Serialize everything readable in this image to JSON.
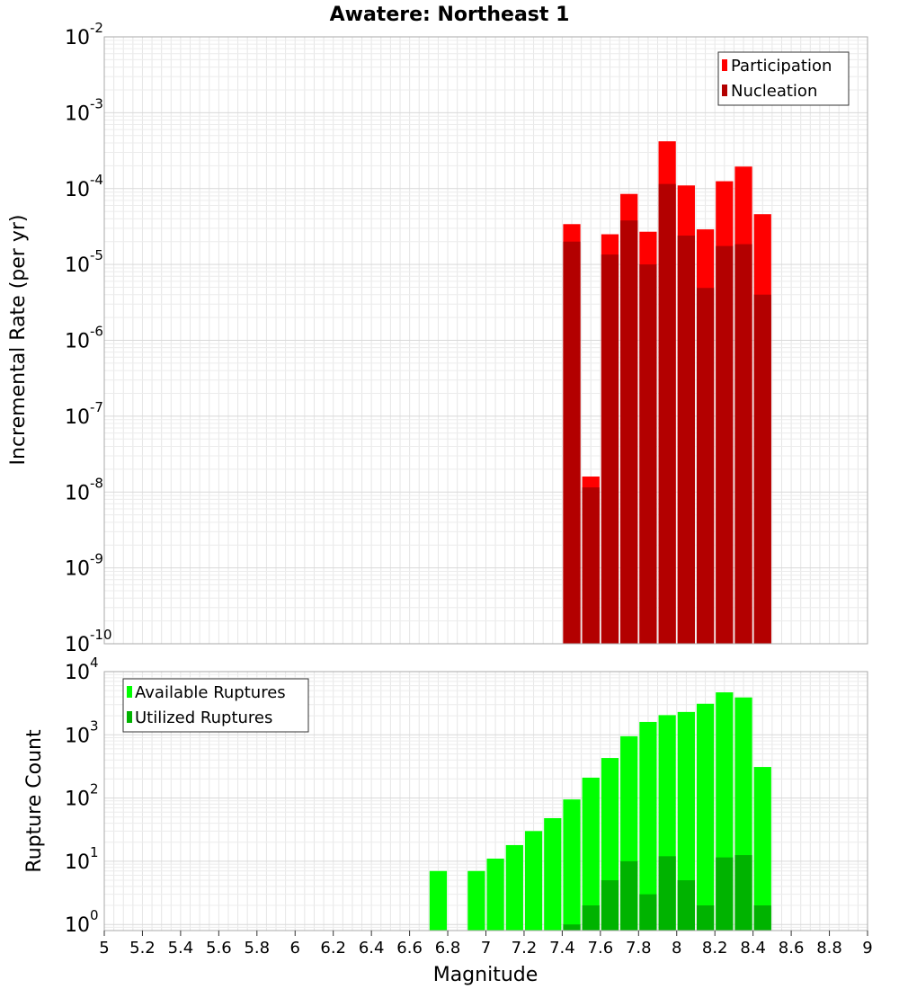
{
  "title": "Awatere: Northeast 1",
  "chart_data": [
    {
      "type": "bar",
      "ylabel": "Incremental Rate (per yr)",
      "xlabel": "",
      "yscale": "log",
      "ylim": [
        1e-10,
        0.01
      ],
      "xlim": [
        5,
        9
      ],
      "bin_width": 0.1,
      "grid": true,
      "legend_position": "top-right",
      "x": [
        7.45,
        7.55,
        7.65,
        7.75,
        7.85,
        7.95,
        8.05,
        8.15,
        8.25,
        8.35,
        8.45
      ],
      "series": [
        {
          "name": "Participation",
          "color": "#ff0000",
          "values": [
            3.4e-05,
            1.6e-08,
            2.5e-05,
            8.5e-05,
            2.7e-05,
            0.00042,
            0.00011,
            2.9e-05,
            0.000125,
            0.000195,
            4.6e-05
          ]
        },
        {
          "name": "Nucleation",
          "color": "#b30000",
          "values": [
            2e-05,
            1.15e-08,
            1.35e-05,
            3.8e-05,
            1e-05,
            0.000115,
            2.4e-05,
            4.9e-06,
            1.75e-05,
            1.85e-05,
            4e-06
          ]
        }
      ]
    },
    {
      "type": "bar",
      "ylabel": "Rupture Count",
      "xlabel": "Magnitude",
      "yscale": "log",
      "ylim": [
        0.8,
        10000
      ],
      "xlim": [
        5,
        9
      ],
      "bin_width": 0.1,
      "grid": true,
      "legend_position": "top-left",
      "x": [
        6.75,
        6.95,
        7.05,
        7.15,
        7.25,
        7.35,
        7.45,
        7.55,
        7.65,
        7.75,
        7.85,
        7.95,
        8.05,
        8.15,
        8.25,
        8.35,
        8.45
      ],
      "series": [
        {
          "name": "Available Ruptures",
          "color": "#00ff00",
          "values": [
            7,
            7,
            11,
            18,
            30,
            48,
            95,
            210,
            430,
            950,
            1600,
            2050,
            2300,
            3100,
            4700,
            3900,
            310
          ]
        },
        {
          "name": "Utilized Ruptures",
          "color": "#00b300",
          "values": [
            0,
            0,
            0,
            0,
            0,
            0,
            1,
            2,
            5,
            10,
            3,
            12,
            5,
            2,
            11.5,
            12.5,
            2
          ]
        }
      ]
    }
  ],
  "x_ticks": [
    "5",
    "5.2",
    "5.4",
    "5.6",
    "5.8",
    "6",
    "6.2",
    "6.4",
    "6.6",
    "6.8",
    "7",
    "7.2",
    "7.4",
    "7.6",
    "7.8",
    "8",
    "8.2",
    "8.4",
    "8.6",
    "8.8",
    "9"
  ],
  "top_y_ticks": [
    {
      "base": "10",
      "exp": "-2"
    },
    {
      "base": "10",
      "exp": "-3"
    },
    {
      "base": "10",
      "exp": "-4"
    },
    {
      "base": "10",
      "exp": "-5"
    },
    {
      "base": "10",
      "exp": "-6"
    },
    {
      "base": "10",
      "exp": "-7"
    },
    {
      "base": "10",
      "exp": "-8"
    },
    {
      "base": "10",
      "exp": "-9"
    },
    {
      "base": "10",
      "exp": "-10"
    }
  ],
  "bottom_y_ticks": [
    {
      "base": "10",
      "exp": "4"
    },
    {
      "base": "10",
      "exp": "3"
    },
    {
      "base": "10",
      "exp": "2"
    },
    {
      "base": "10",
      "exp": "1"
    },
    {
      "base": "10",
      "exp": "0"
    }
  ]
}
